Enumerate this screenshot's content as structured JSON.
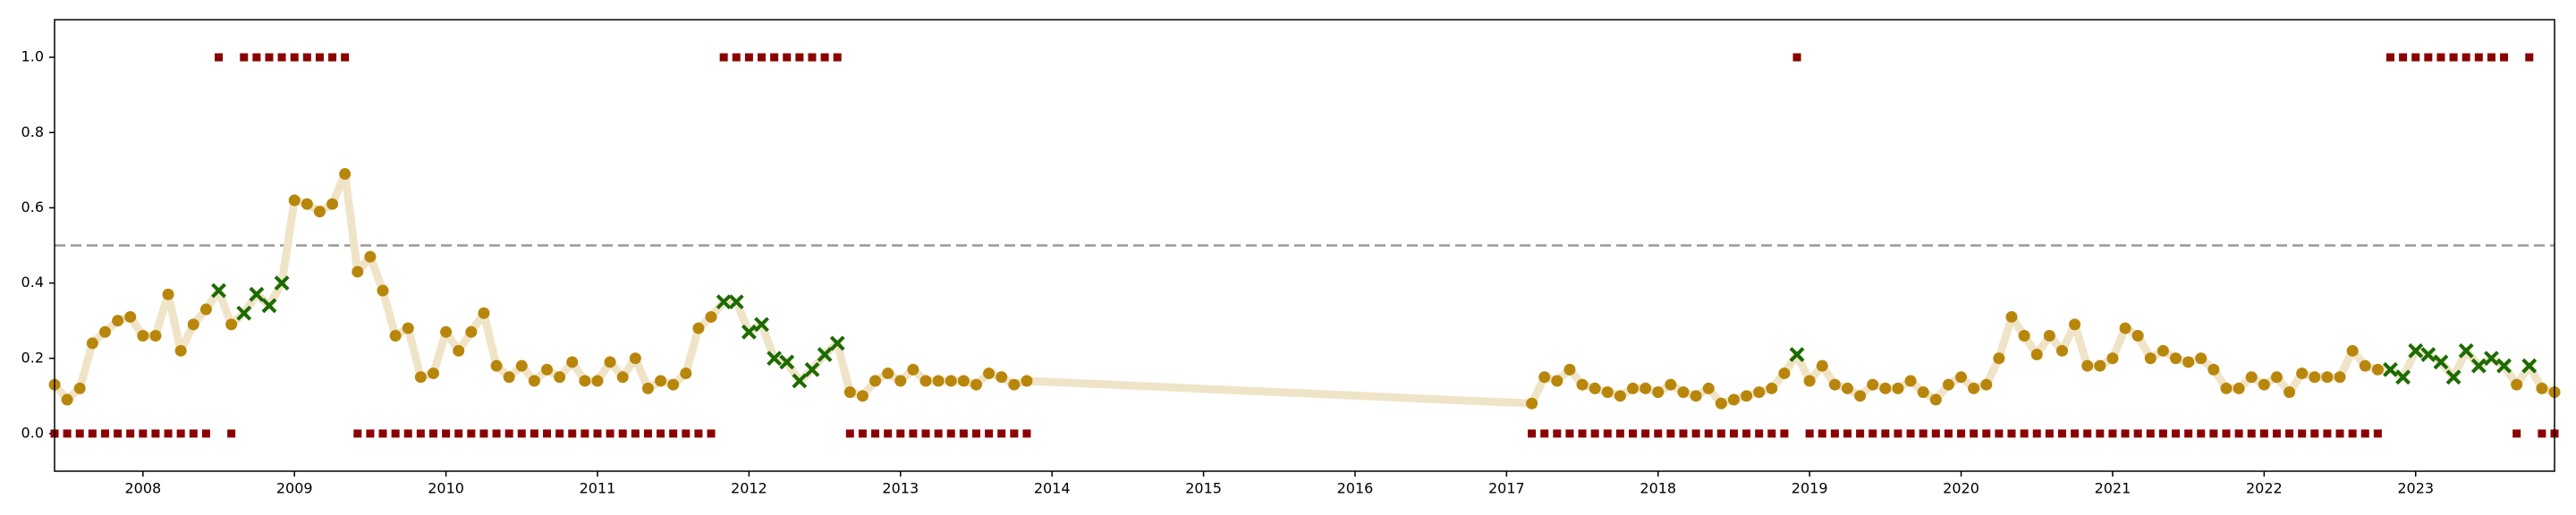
{
  "chart_data": {
    "type": "scatter",
    "x": [
      "2007-06",
      "2007-07",
      "2007-08",
      "2007-09",
      "2007-10",
      "2007-11",
      "2007-12",
      "2008-01",
      "2008-02",
      "2008-03",
      "2008-04",
      "2008-05",
      "2008-06",
      "2008-07",
      "2008-08",
      "2008-09",
      "2008-10",
      "2008-11",
      "2008-12",
      "2009-01",
      "2009-02",
      "2009-03",
      "2009-04",
      "2009-05",
      "2009-06",
      "2009-07",
      "2009-08",
      "2009-09",
      "2009-10",
      "2009-11",
      "2009-12",
      "2010-01",
      "2010-02",
      "2010-03",
      "2010-04",
      "2010-05",
      "2010-06",
      "2010-07",
      "2010-08",
      "2010-09",
      "2010-10",
      "2010-11",
      "2010-12",
      "2011-01",
      "2011-02",
      "2011-03",
      "2011-04",
      "2011-05",
      "2011-06",
      "2011-07",
      "2011-08",
      "2011-09",
      "2011-10",
      "2011-11",
      "2011-12",
      "2012-01",
      "2012-02",
      "2012-03",
      "2012-04",
      "2012-05",
      "2012-06",
      "2012-07",
      "2012-08",
      "2012-09",
      "2012-10",
      "2012-11",
      "2012-12",
      "2013-01",
      "2013-02",
      "2013-03",
      "2013-04",
      "2013-05",
      "2013-06",
      "2013-07",
      "2013-08",
      "2013-09",
      "2013-10",
      "2013-11",
      "2017-03",
      "2017-04",
      "2017-05",
      "2017-06",
      "2017-07",
      "2017-08",
      "2017-09",
      "2017-10",
      "2017-11",
      "2017-12",
      "2018-01",
      "2018-02",
      "2018-03",
      "2018-04",
      "2018-05",
      "2018-06",
      "2018-07",
      "2018-08",
      "2018-09",
      "2018-10",
      "2018-11",
      "2018-12",
      "2019-01",
      "2019-02",
      "2019-03",
      "2019-04",
      "2019-05",
      "2019-06",
      "2019-07",
      "2019-08",
      "2019-09",
      "2019-10",
      "2019-11",
      "2019-12",
      "2020-01",
      "2020-02",
      "2020-03",
      "2020-04",
      "2020-05",
      "2020-06",
      "2020-07",
      "2020-08",
      "2020-09",
      "2020-10",
      "2020-11",
      "2020-12",
      "2021-01",
      "2021-02",
      "2021-03",
      "2021-04",
      "2021-05",
      "2021-06",
      "2021-07",
      "2021-08",
      "2021-09",
      "2021-10",
      "2021-11",
      "2021-12",
      "2022-01",
      "2022-02",
      "2022-03",
      "2022-04",
      "2022-05",
      "2022-06",
      "2022-07",
      "2022-08",
      "2022-09",
      "2022-10",
      "2022-11",
      "2022-12",
      "2023-01",
      "2023-02",
      "2023-03",
      "2023-04",
      "2023-05",
      "2023-06",
      "2023-07",
      "2023-08",
      "2023-09",
      "2023-10",
      "2023-11",
      "2023-12"
    ],
    "series": [
      {
        "color": "#b8860b",
        "line_color": "#f0e4c8",
        "miss_color": "#1a6b00",
        "values": [
          0.13,
          0.09,
          0.12,
          0.24,
          0.27,
          0.3,
          0.31,
          0.26,
          0.26,
          0.37,
          0.22,
          0.29,
          0.33,
          0.38,
          0.29,
          0.32,
          0.37,
          0.34,
          0.4,
          0.62,
          0.61,
          0.59,
          0.61,
          0.69,
          0.43,
          0.47,
          0.38,
          0.26,
          0.28,
          0.15,
          0.16,
          0.27,
          0.22,
          0.27,
          0.32,
          0.18,
          0.15,
          0.18,
          0.14,
          0.17,
          0.15,
          0.19,
          0.14,
          0.14,
          0.19,
          0.15,
          0.2,
          0.12,
          0.14,
          0.13,
          0.16,
          0.28,
          0.31,
          0.35,
          0.35,
          0.27,
          0.29,
          0.2,
          0.19,
          0.14,
          0.17,
          0.21,
          0.24,
          0.11,
          0.1,
          0.14,
          0.16,
          0.14,
          0.17,
          0.14,
          0.14,
          0.14,
          0.14,
          0.13,
          0.16,
          0.15,
          0.13,
          0.14,
          0.08,
          0.15,
          0.14,
          0.17,
          0.13,
          0.12,
          0.11,
          0.1,
          0.12,
          0.12,
          0.11,
          0.13,
          0.11,
          0.1,
          0.12,
          0.08,
          0.09,
          0.1,
          0.11,
          0.12,
          0.16,
          0.21,
          0.14,
          0.18,
          0.13,
          0.12,
          0.1,
          0.13,
          0.12,
          0.12,
          0.14,
          0.11,
          0.09,
          0.13,
          0.15,
          0.12,
          0.13,
          0.2,
          0.31,
          0.26,
          0.21,
          0.26,
          0.22,
          0.29,
          0.18,
          0.18,
          0.2,
          0.28,
          0.26,
          0.2,
          0.22,
          0.2,
          0.19,
          0.2,
          0.17,
          0.12,
          0.12,
          0.15,
          0.13,
          0.15,
          0.11,
          0.16,
          0.15,
          0.15,
          0.15,
          0.22,
          0.18,
          0.17,
          0.17,
          0.15,
          0.22,
          0.21,
          0.19,
          0.15,
          0.22,
          0.18,
          0.2,
          0.18,
          0.13,
          0.18,
          0.12,
          0.11
        ]
      },
      {
        "color": "#8b0000",
        "values": [
          0,
          0,
          0,
          0,
          0,
          0,
          0,
          0,
          0,
          0,
          0,
          0,
          0,
          1,
          0,
          1,
          1,
          1,
          1,
          1,
          1,
          1,
          1,
          1,
          0,
          0,
          0,
          0,
          0,
          0,
          0,
          0,
          0,
          0,
          0,
          0,
          0,
          0,
          0,
          0,
          0,
          0,
          0,
          0,
          0,
          0,
          0,
          0,
          0,
          0,
          0,
          0,
          0,
          1,
          1,
          1,
          1,
          1,
          1,
          1,
          1,
          1,
          1,
          0,
          0,
          0,
          0,
          0,
          0,
          0,
          0,
          0,
          0,
          0,
          0,
          0,
          0,
          0,
          0,
          0,
          0,
          0,
          0,
          0,
          0,
          0,
          0,
          0,
          0,
          0,
          0,
          0,
          0,
          0,
          0,
          0,
          0,
          0,
          0,
          1,
          0,
          0,
          0,
          0,
          0,
          0,
          0,
          0,
          0,
          0,
          0,
          0,
          0,
          0,
          0,
          0,
          0,
          0,
          0,
          0,
          0,
          0,
          0,
          0,
          0,
          0,
          0,
          0,
          0,
          0,
          0,
          0,
          0,
          0,
          0,
          0,
          0,
          0,
          0,
          0,
          0,
          0,
          0,
          0,
          0,
          0,
          1,
          1,
          1,
          1,
          1,
          1,
          1,
          1,
          1,
          1,
          0,
          1,
          0,
          0
        ]
      }
    ],
    "threshold": 0.5,
    "threshold_color": "#999999",
    "xlim": [
      "2007-06",
      "2023-12"
    ],
    "xticks": [
      "2008",
      "2009",
      "2010",
      "2011",
      "2012",
      "2013",
      "2014",
      "2015",
      "2016",
      "2017",
      "2018",
      "2019",
      "2020",
      "2021",
      "2022",
      "2023"
    ],
    "ylim": [
      -0.1,
      1.1
    ],
    "yticks": [
      {
        "value": 0,
        "label": "0.0"
      },
      {
        "value": 0.2,
        "label": "0.2"
      },
      {
        "value": 0.4,
        "label": "0.4"
      },
      {
        "value": 0.6,
        "label": "0.6"
      },
      {
        "value": 0.8,
        "label": "0.8"
      },
      {
        "value": 1,
        "label": "1.0"
      }
    ]
  }
}
